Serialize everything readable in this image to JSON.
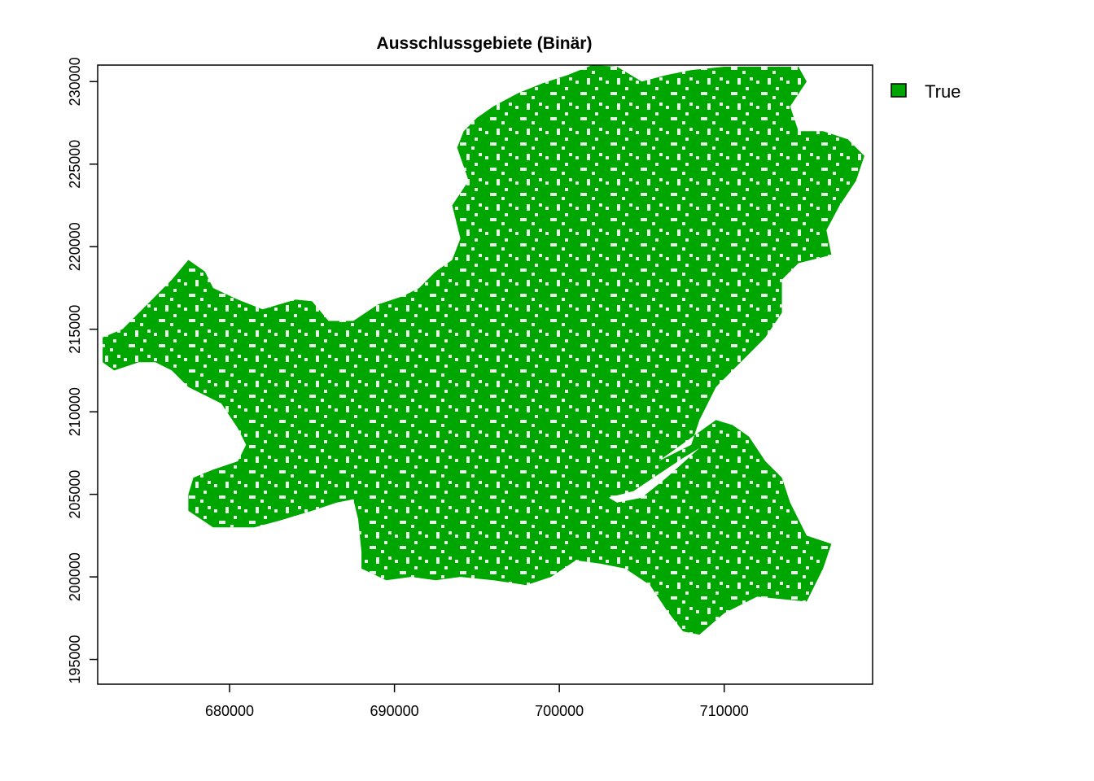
{
  "chart_data": {
    "type": "raster-map",
    "title": "Ausschlussgebiete (Binär)",
    "xlabel": "",
    "ylabel": "",
    "xlim": [
      672000,
      719000
    ],
    "ylim": [
      193500,
      231000
    ],
    "x_ticks": [
      680000,
      690000,
      700000,
      710000
    ],
    "x_tick_labels": [
      "680000",
      "690000",
      "700000",
      "710000"
    ],
    "y_ticks": [
      195000,
      200000,
      205000,
      210000,
      215000,
      220000,
      225000,
      230000
    ],
    "y_tick_labels": [
      "195000",
      "200000",
      "205000",
      "210000",
      "215000",
      "220000",
      "225000",
      "230000"
    ],
    "legend": {
      "position": "top-right",
      "entries": [
        {
          "label": "True",
          "color": "#00A600"
        }
      ]
    },
    "colors": {
      "true": "#00A600",
      "background": "#FFFFFF"
    },
    "region_outline": [
      [
        672300,
        214500
      ],
      [
        673500,
        215000
      ],
      [
        675000,
        216500
      ],
      [
        676500,
        218000
      ],
      [
        677500,
        219200
      ],
      [
        678500,
        218500
      ],
      [
        679000,
        217500
      ],
      [
        680500,
        216800
      ],
      [
        682000,
        216200
      ],
      [
        684000,
        216800
      ],
      [
        685000,
        216700
      ],
      [
        686000,
        215500
      ],
      [
        687500,
        215500
      ],
      [
        689000,
        216500
      ],
      [
        690500,
        217000
      ],
      [
        691500,
        217500
      ],
      [
        692500,
        218500
      ],
      [
        693500,
        219200
      ],
      [
        694000,
        220500
      ],
      [
        693500,
        222500
      ],
      [
        694500,
        224000
      ],
      [
        693800,
        226000
      ],
      [
        694200,
        227000
      ],
      [
        695000,
        227800
      ],
      [
        696000,
        228500
      ],
      [
        697500,
        229300
      ],
      [
        699000,
        229900
      ],
      [
        700500,
        230400
      ],
      [
        702000,
        231000
      ],
      [
        703500,
        230900
      ],
      [
        705000,
        230000
      ],
      [
        706500,
        230400
      ],
      [
        708000,
        230700
      ],
      [
        710000,
        230900
      ],
      [
        713000,
        230900
      ],
      [
        714500,
        230900
      ],
      [
        715000,
        230000
      ],
      [
        714000,
        228500
      ],
      [
        714500,
        227000
      ],
      [
        716000,
        227000
      ],
      [
        717500,
        226500
      ],
      [
        718500,
        225500
      ],
      [
        718000,
        224000
      ],
      [
        717000,
        222500
      ],
      [
        716200,
        221000
      ],
      [
        716500,
        219500
      ],
      [
        714500,
        219000
      ],
      [
        713500,
        218000
      ],
      [
        713500,
        216000
      ],
      [
        712500,
        214500
      ],
      [
        711500,
        213500
      ],
      [
        710500,
        212500
      ],
      [
        709500,
        211500
      ],
      [
        708500,
        209500
      ],
      [
        708000,
        208000
      ],
      [
        707000,
        207500
      ],
      [
        706000,
        207000
      ],
      [
        709500,
        209500
      ],
      [
        710500,
        209200
      ],
      [
        711500,
        208500
      ],
      [
        712500,
        207000
      ],
      [
        713500,
        206000
      ],
      [
        714000,
        204500
      ],
      [
        715000,
        202500
      ],
      [
        716500,
        202000
      ],
      [
        716000,
        200500
      ],
      [
        715000,
        198500
      ],
      [
        712000,
        198800
      ],
      [
        710000,
        197800
      ],
      [
        708500,
        196500
      ],
      [
        707500,
        196700
      ],
      [
        706500,
        198000
      ],
      [
        705500,
        199500
      ],
      [
        704000,
        200500
      ],
      [
        702500,
        200800
      ],
      [
        701000,
        201000
      ],
      [
        699500,
        200000
      ],
      [
        698000,
        199500
      ],
      [
        696000,
        199800
      ],
      [
        694000,
        200000
      ],
      [
        692500,
        199800
      ],
      [
        691000,
        200000
      ],
      [
        689500,
        199800
      ],
      [
        688000,
        200500
      ],
      [
        688000,
        201500
      ],
      [
        687800,
        203500
      ],
      [
        687500,
        204700
      ],
      [
        686500,
        204500
      ],
      [
        685000,
        204000
      ],
      [
        683000,
        203400
      ],
      [
        681500,
        203000
      ],
      [
        680000,
        203000
      ],
      [
        679000,
        203000
      ],
      [
        677500,
        204000
      ],
      [
        677500,
        205000
      ],
      [
        677800,
        206000
      ],
      [
        679000,
        206500
      ],
      [
        680500,
        207000
      ],
      [
        681000,
        208000
      ],
      [
        680500,
        209000
      ],
      [
        679500,
        210500
      ],
      [
        678500,
        211000
      ],
      [
        677500,
        211500
      ],
      [
        676500,
        212500
      ],
      [
        675500,
        213000
      ],
      [
        674500,
        213000
      ],
      [
        673000,
        212500
      ],
      [
        672300,
        213000
      ]
    ],
    "hole_outline": [
      [
        703000,
        204800
      ],
      [
        704500,
        205200
      ],
      [
        706000,
        206200
      ],
      [
        707500,
        207200
      ],
      [
        708500,
        207800
      ],
      [
        706500,
        206000
      ],
      [
        705000,
        204800
      ],
      [
        703500,
        204500
      ]
    ]
  }
}
